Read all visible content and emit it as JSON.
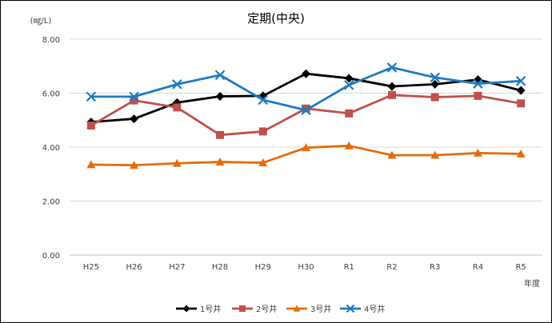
{
  "chart_data": {
    "type": "line",
    "title": "定期(中央)",
    "ylabel": "(㎎/L)",
    "xlabel": "年度",
    "ylim": [
      0,
      8
    ],
    "yticks": [
      "0.00",
      "2.00",
      "4.00",
      "6.00",
      "8.00"
    ],
    "ytick_values": [
      0,
      2,
      4,
      6,
      8
    ],
    "grid": true,
    "legend_position": "bottom",
    "categories": [
      "H25",
      "H26",
      "H27",
      "H28",
      "H29",
      "H30",
      "R1",
      "R2",
      "R3",
      "R4",
      "R5"
    ],
    "series": [
      {
        "name": "1号井",
        "color": "#000000",
        "marker": "diamond",
        "values": [
          4.93,
          5.05,
          5.65,
          5.88,
          5.9,
          6.72,
          6.55,
          6.25,
          6.33,
          6.5,
          6.1
        ]
      },
      {
        "name": "2号井",
        "color": "#C0504D",
        "marker": "square",
        "values": [
          4.8,
          5.73,
          5.47,
          4.45,
          4.58,
          5.43,
          5.25,
          5.93,
          5.85,
          5.9,
          5.62
        ]
      },
      {
        "name": "3号井",
        "color": "#E46C0A",
        "marker": "triangle",
        "values": [
          3.35,
          3.33,
          3.4,
          3.45,
          3.42,
          3.98,
          4.05,
          3.7,
          3.7,
          3.78,
          3.75
        ]
      },
      {
        "name": "4号井",
        "color": "#1F7AC0",
        "marker": "x",
        "values": [
          5.87,
          5.87,
          6.33,
          6.67,
          5.75,
          5.37,
          6.3,
          6.95,
          6.58,
          6.35,
          6.45
        ]
      }
    ]
  }
}
